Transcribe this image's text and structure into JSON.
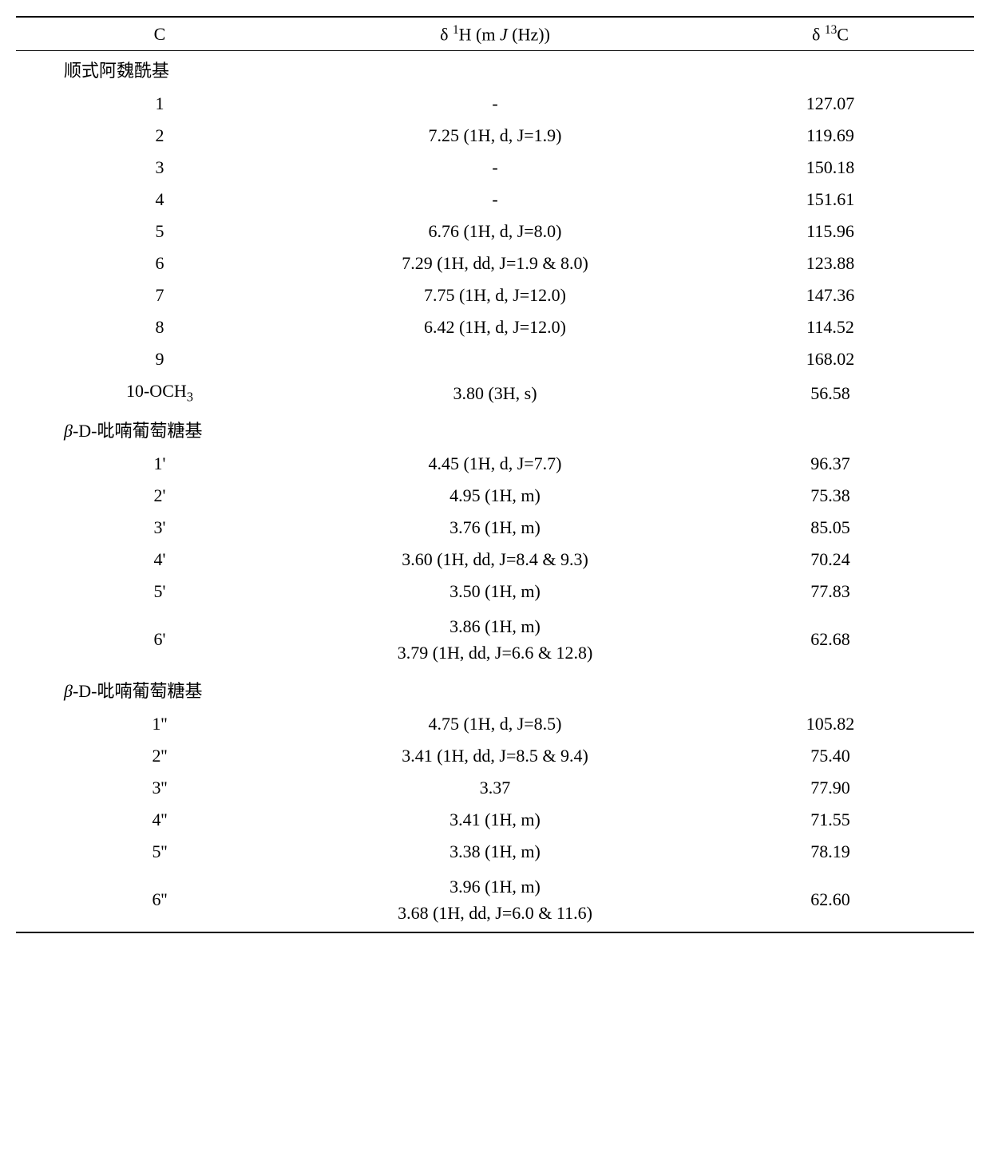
{
  "table": {
    "background_color": "#ffffff",
    "text_color": "#000000",
    "border_color": "#000000",
    "font_family": "Times New Roman",
    "header_fontsize": 22,
    "body_fontsize": 22,
    "column_widths_pct": [
      30,
      40,
      30
    ],
    "columns": {
      "c": "C",
      "h1_prefix": "δ ",
      "h1_sup": "1",
      "h1_mid": "H (m ",
      "h1_ital": "J ",
      "h1_suffix": "(Hz))",
      "c13_prefix": "δ ",
      "c13_sup": "13",
      "c13_suffix": "C"
    },
    "sections": [
      {
        "label": "顺式阿魏酰基",
        "italic_prefix": "",
        "rows": [
          {
            "c": "1",
            "h": "-",
            "c13": "127.07"
          },
          {
            "c": "2",
            "h": "7.25 (1H, d, J=1.9)",
            "c13": "119.69"
          },
          {
            "c": "3",
            "h": "-",
            "c13": "150.18"
          },
          {
            "c": "4",
            "h": "-",
            "c13": "151.61"
          },
          {
            "c": "5",
            "h": "6.76 (1H, d, J=8.0)",
            "c13": "115.96"
          },
          {
            "c": "6",
            "h": "7.29 (1H, dd, J=1.9 & 8.0)",
            "c13": "123.88"
          },
          {
            "c": "7",
            "h": "7.75 (1H, d, J=12.0)",
            "c13": "147.36"
          },
          {
            "c": "8",
            "h": "6.42 (1H, d, J=12.0)",
            "c13": "114.52"
          },
          {
            "c": "9",
            "h": "",
            "c13": "168.02"
          },
          {
            "c_prefix": "10-OCH",
            "c_sub": "3",
            "h": "3.80 (3H, s)",
            "c13": "56.58"
          }
        ]
      },
      {
        "italic_prefix": "β",
        "label_rest": "-D-吡喃葡萄糖基",
        "rows": [
          {
            "c": "1'",
            "h": "4.45 (1H, d, J=7.7)",
            "c13": "96.37"
          },
          {
            "c": "2'",
            "h": "4.95 (1H, m)",
            "c13": "75.38"
          },
          {
            "c": "3'",
            "h": "3.76 (1H, m)",
            "c13": "85.05"
          },
          {
            "c": "4'",
            "h": "3.60 (1H, dd, J=8.4 & 9.3)",
            "c13": "70.24"
          },
          {
            "c": "5'",
            "h": "3.50 (1H, m)",
            "c13": "77.83"
          },
          {
            "c": "6'",
            "h_line1": "3.86 (1H, m)",
            "h_line2": "3.79 (1H, dd, J=6.6 & 12.8)",
            "c13": "62.68"
          }
        ]
      },
      {
        "italic_prefix": "β",
        "label_rest": "-D-吡喃葡萄糖基",
        "rows": [
          {
            "c": "1''",
            "h": "4.75 (1H, d, J=8.5)",
            "c13": "105.82"
          },
          {
            "c": "2''",
            "h": "3.41 (1H, dd, J=8.5 & 9.4)",
            "c13": "75.40"
          },
          {
            "c": "3''",
            "h": "3.37",
            "c13": "77.90"
          },
          {
            "c": "4''",
            "h": "3.41 (1H, m)",
            "c13": "71.55"
          },
          {
            "c": "5''",
            "h": "3.38 (1H, m)",
            "c13": "78.19"
          },
          {
            "c": "6''",
            "h_line1": "3.96 (1H, m)",
            "h_line2": "3.68 (1H, dd, J=6.0 & 11.6)",
            "c13": "62.60"
          }
        ]
      }
    ]
  }
}
